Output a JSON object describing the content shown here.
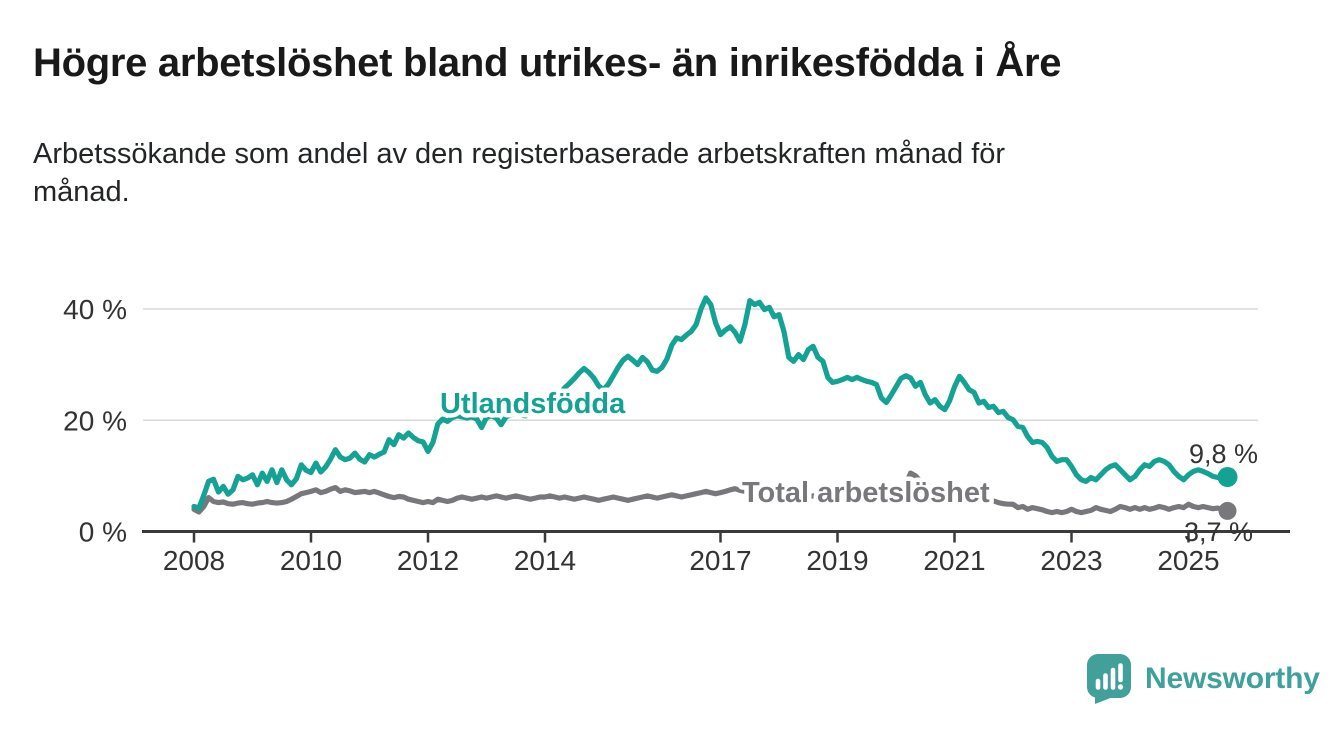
{
  "header": {
    "title": "Högre arbetslöshet bland utrikes- än inrikesfödda i Åre",
    "subtitle": "Arbetssökande som andel av den registerbaserade arbetskraften månad för\nmånad."
  },
  "colors": {
    "accent_teal": "#13a293",
    "series_gray": "#77777c",
    "grid": "#d9d9d9",
    "axis": "#3a3a3a",
    "label_dark": "#333333",
    "brand_teal": "#3ea19b"
  },
  "chart_data": {
    "type": "line",
    "title": "Högre arbetslöshet bland utrikes- än inrikesfödda i Åre",
    "subtitle": "Arbetssökande som andel av den registerbaserade arbetskraften månad för månad.",
    "frequency": "monthly",
    "x_start": "2008-01",
    "x_end": "2025-09",
    "xlabel": "",
    "ylabel": "",
    "ylim": [
      0,
      44
    ],
    "grid": "horizontal",
    "legend": "inline-labels",
    "x_tick_years": [
      2008,
      2010,
      2012,
      2014,
      2017,
      2019,
      2021,
      2023,
      2025
    ],
    "y_ticks": [
      {
        "value": 40,
        "label": "40 %"
      },
      {
        "value": 20,
        "label": "20 %"
      },
      {
        "value": 0,
        "label": "0 %"
      }
    ],
    "series": [
      {
        "name": "Utlandsfödda",
        "color": "#13a293",
        "end_label": "9,8 %",
        "last_value": 9.8,
        "values": [
          4.5,
          4.2,
          6.5,
          9.0,
          9.4,
          7.1,
          8.1,
          6.7,
          7.5,
          9.9,
          9.3,
          9.6,
          10.2,
          8.4,
          10.5,
          9.0,
          11.1,
          8.8,
          11.1,
          9.3,
          8.4,
          9.5,
          12.0,
          11.0,
          10.6,
          12.3,
          10.7,
          11.6,
          13.0,
          14.7,
          13.4,
          12.9,
          13.2,
          14.1,
          13.0,
          12.5,
          13.8,
          13.4,
          13.9,
          14.3,
          16.5,
          15.6,
          17.4,
          16.8,
          17.7,
          16.9,
          16.3,
          16.1,
          14.4,
          16.0,
          19.3,
          20.2,
          19.8,
          20.5,
          20.8,
          20.6,
          20.4,
          20.6,
          20.2,
          18.7,
          20.5,
          20.8,
          20.4,
          19.2,
          20.6,
          21.0,
          21.3,
          21.0,
          20.8,
          21.4,
          22.0,
          22.3,
          22.5,
          23.0,
          23.5,
          24.6,
          25.8,
          26.6,
          27.5,
          28.5,
          29.3,
          28.6,
          27.6,
          26.2,
          25.5,
          26.5,
          28.0,
          29.5,
          30.8,
          31.5,
          30.8,
          30.0,
          31.3,
          30.5,
          29.0,
          28.8,
          29.5,
          31.0,
          33.5,
          34.8,
          34.5,
          35.3,
          36.0,
          37.2,
          40.0,
          42.0,
          40.8,
          37.5,
          35.4,
          36.2,
          36.8,
          35.8,
          34.2,
          37.2,
          41.5,
          40.8,
          41.2,
          39.9,
          40.3,
          38.6,
          39.0,
          36.0,
          31.3,
          30.6,
          31.8,
          30.9,
          32.7,
          33.3,
          31.3,
          30.6,
          27.7,
          26.8,
          27.0,
          27.3,
          27.7,
          27.3,
          27.7,
          27.3,
          27.0,
          26.8,
          26.4,
          24.0,
          23.2,
          24.5,
          26.0,
          27.5,
          28.0,
          27.6,
          26.1,
          26.8,
          24.6,
          23.1,
          23.7,
          22.5,
          21.9,
          23.5,
          26.0,
          27.9,
          26.8,
          25.5,
          25.0,
          23.1,
          23.4,
          22.3,
          22.5,
          21.4,
          21.6,
          20.5,
          20.1,
          18.9,
          18.7,
          17.1,
          16.0,
          16.2,
          16.0,
          15.1,
          13.5,
          12.6,
          12.9,
          12.9,
          11.7,
          10.2,
          9.3,
          9.0,
          9.7,
          9.3,
          10.2,
          11.1,
          11.7,
          12.0,
          11.1,
          10.2,
          9.3,
          9.9,
          11.1,
          12.0,
          11.7,
          12.6,
          12.9,
          12.6,
          12.0,
          10.8,
          9.9,
          9.3,
          10.2,
          10.8,
          11.1,
          10.8,
          10.4,
          9.9,
          9.7,
          9.6,
          9.8
        ]
      },
      {
        "name": "Total arbetslöshet",
        "color": "#77777c",
        "end_label": "3,7 %",
        "last_value": 3.7,
        "values": [
          4.0,
          3.5,
          4.5,
          6.1,
          5.4,
          5.2,
          5.3,
          5.0,
          4.9,
          5.1,
          5.2,
          5.0,
          4.9,
          5.1,
          5.2,
          5.4,
          5.2,
          5.1,
          5.2,
          5.4,
          5.8,
          6.3,
          6.8,
          7.0,
          7.2,
          7.5,
          7.0,
          7.2,
          7.6,
          7.9,
          7.2,
          7.5,
          7.3,
          7.0,
          7.1,
          7.2,
          7.0,
          7.2,
          6.9,
          6.6,
          6.3,
          6.1,
          6.3,
          6.2,
          5.8,
          5.6,
          5.4,
          5.2,
          5.4,
          5.2,
          5.8,
          5.6,
          5.4,
          5.6,
          6.0,
          6.2,
          6.0,
          5.8,
          6.0,
          6.2,
          6.0,
          6.2,
          6.4,
          6.2,
          6.0,
          6.2,
          6.4,
          6.2,
          6.0,
          5.8,
          6.0,
          6.2,
          6.2,
          6.4,
          6.2,
          6.0,
          6.2,
          6.0,
          5.8,
          6.0,
          6.2,
          6.0,
          5.8,
          5.6,
          5.8,
          6.0,
          6.2,
          6.0,
          5.8,
          5.6,
          5.8,
          6.0,
          6.2,
          6.4,
          6.2,
          6.0,
          6.2,
          6.4,
          6.6,
          6.4,
          6.2,
          6.4,
          6.6,
          6.8,
          7.0,
          7.2,
          7.0,
          6.8,
          7.0,
          7.2,
          7.5,
          7.7,
          7.4,
          7.2,
          7.0,
          6.8,
          7.0,
          6.8,
          6.6,
          6.4,
          6.6,
          6.4,
          6.2,
          6.4,
          6.2,
          6.0,
          6.2,
          6.4,
          6.2,
          6.0,
          6.2,
          6.0,
          6.2,
          6.0,
          6.2,
          6.4,
          6.2,
          6.0,
          6.2,
          6.0,
          5.8,
          6.0,
          6.2,
          6.4,
          6.6,
          6.8,
          8.5,
          10.5,
          10.0,
          9.0,
          8.5,
          8.0,
          7.8,
          7.5,
          7.2,
          7.0,
          7.2,
          7.0,
          6.8,
          6.6,
          6.4,
          6.2,
          6.0,
          5.8,
          5.5,
          5.2,
          5.0,
          4.9,
          4.9,
          4.3,
          4.5,
          4.0,
          4.3,
          4.1,
          3.9,
          3.6,
          3.4,
          3.6,
          3.4,
          3.6,
          4.0,
          3.6,
          3.4,
          3.6,
          3.8,
          4.3,
          4.0,
          3.8,
          3.6,
          4.0,
          4.5,
          4.3,
          4.0,
          4.3,
          4.0,
          4.3,
          4.0,
          4.2,
          4.5,
          4.3,
          4.0,
          4.3,
          4.5,
          4.3,
          4.9,
          4.5,
          4.3,
          4.5,
          4.3,
          4.1,
          4.2,
          4.0,
          3.7
        ]
      }
    ]
  },
  "footer": {
    "brand": "Newsworthy"
  }
}
